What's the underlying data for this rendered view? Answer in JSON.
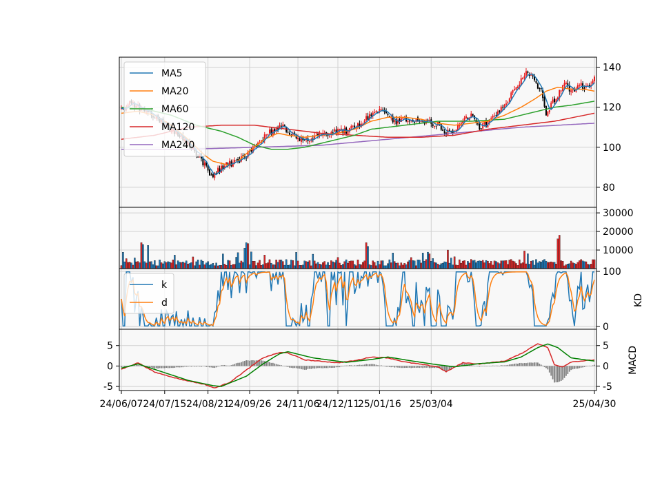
{
  "chart_data": {
    "type": "candlestick",
    "x_tick_labels": [
      "24/06/07",
      "24/07/15",
      "24/08/21",
      "24/09/26",
      "24/11/06",
      "24/12/11",
      "25/01/16",
      "25/03/04",
      "25/04/30"
    ],
    "price": {
      "ylim": [
        70,
        145
      ],
      "y_ticks": [
        80,
        100,
        120,
        140
      ],
      "grid": true,
      "legend_location": "upper-left",
      "legend": [
        "MA5",
        "MA20",
        "MA60",
        "MA120",
        "MA240"
      ],
      "colors": {
        "MA5": "#1f77b4",
        "MA20": "#ff7f0e",
        "MA60": "#2ca02c",
        "MA120": "#d62728",
        "MA240": "#9467bd",
        "up": "#e41a1c",
        "down": "#000000"
      },
      "anchors": {
        "close": [
          [
            0,
            118
          ],
          [
            5,
            122
          ],
          [
            10,
            120
          ],
          [
            18,
            117
          ],
          [
            26,
            111
          ],
          [
            34,
            107
          ],
          [
            42,
            100
          ],
          [
            48,
            94
          ],
          [
            52,
            88
          ],
          [
            55,
            86
          ],
          [
            60,
            90
          ],
          [
            66,
            92
          ],
          [
            72,
            94
          ],
          [
            78,
            98
          ],
          [
            84,
            104
          ],
          [
            90,
            108
          ],
          [
            95,
            111
          ],
          [
            100,
            108
          ],
          [
            104,
            106
          ],
          [
            108,
            104
          ],
          [
            113,
            104
          ],
          [
            118,
            106
          ],
          [
            124,
            107
          ],
          [
            130,
            108
          ],
          [
            135,
            108
          ],
          [
            140,
            110
          ],
          [
            145,
            112
          ],
          [
            150,
            117
          ],
          [
            155,
            119
          ],
          [
            160,
            115
          ],
          [
            165,
            113
          ],
          [
            170,
            114
          ],
          [
            175,
            114
          ],
          [
            180,
            113
          ],
          [
            185,
            112
          ],
          [
            190,
            112
          ],
          [
            195,
            107
          ],
          [
            200,
            108
          ],
          [
            205,
            114
          ],
          [
            210,
            116
          ],
          [
            215,
            110
          ],
          [
            220,
            112
          ],
          [
            225,
            117
          ],
          [
            230,
            120
          ],
          [
            235,
            128
          ],
          [
            240,
            133
          ],
          [
            243,
            139
          ],
          [
            247,
            134
          ],
          [
            252,
            128
          ],
          [
            255,
            116
          ],
          [
            258,
            121
          ],
          [
            262,
            126
          ],
          [
            266,
            132
          ],
          [
            270,
            128
          ],
          [
            275,
            131
          ],
          [
            280,
            130
          ],
          [
            284,
            134
          ]
        ],
        "ma20": [
          [
            0,
            117
          ],
          [
            10,
            118
          ],
          [
            20,
            116
          ],
          [
            30,
            111
          ],
          [
            40,
            104
          ],
          [
            50,
            96
          ],
          [
            55,
            93
          ],
          [
            60,
            92
          ],
          [
            65,
            91
          ],
          [
            70,
            93
          ],
          [
            78,
            99
          ],
          [
            86,
            104
          ],
          [
            94,
            107
          ],
          [
            100,
            106
          ],
          [
            110,
            105
          ],
          [
            120,
            106
          ],
          [
            130,
            107
          ],
          [
            140,
            109
          ],
          [
            150,
            113
          ],
          [
            160,
            115
          ],
          [
            170,
            115
          ],
          [
            180,
            114
          ],
          [
            190,
            112
          ],
          [
            200,
            111
          ],
          [
            210,
            112
          ],
          [
            220,
            113
          ],
          [
            230,
            116
          ],
          [
            240,
            120
          ],
          [
            248,
            124
          ],
          [
            255,
            128
          ],
          [
            262,
            130
          ],
          [
            270,
            129
          ],
          [
            278,
            129
          ],
          [
            284,
            128
          ]
        ],
        "ma60": [
          [
            0,
            120
          ],
          [
            15,
            119
          ],
          [
            30,
            116
          ],
          [
            45,
            111
          ],
          [
            60,
            108
          ],
          [
            70,
            105
          ],
          [
            80,
            101
          ],
          [
            90,
            99
          ],
          [
            100,
            99
          ],
          [
            110,
            100
          ],
          [
            120,
            102
          ],
          [
            130,
            104
          ],
          [
            140,
            106
          ],
          [
            150,
            109
          ],
          [
            170,
            111
          ],
          [
            190,
            113
          ],
          [
            210,
            113
          ],
          [
            230,
            114
          ],
          [
            245,
            117
          ],
          [
            260,
            120
          ],
          [
            270,
            121
          ],
          [
            284,
            123
          ]
        ],
        "ma120": [
          [
            0,
            104
          ],
          [
            20,
            106
          ],
          [
            40,
            110
          ],
          [
            60,
            111
          ],
          [
            80,
            111
          ],
          [
            100,
            109
          ],
          [
            120,
            107
          ],
          [
            140,
            106
          ],
          [
            160,
            105
          ],
          [
            180,
            105
          ],
          [
            200,
            106
          ],
          [
            220,
            109
          ],
          [
            240,
            111
          ],
          [
            260,
            113
          ],
          [
            284,
            117
          ]
        ],
        "ma240": [
          [
            0,
            99
          ],
          [
            40,
            99
          ],
          [
            80,
            100
          ],
          [
            120,
            101
          ],
          [
            160,
            104
          ],
          [
            200,
            107
          ],
          [
            240,
            110
          ],
          [
            284,
            112
          ]
        ]
      }
    },
    "volume": {
      "ylim": [
        0,
        33000
      ],
      "y_ticks": [
        10000,
        20000,
        30000
      ],
      "colors": {
        "up": "#d62728",
        "down": "#1f77b4"
      },
      "spikes": [
        [
          12,
          14000
        ],
        [
          13,
          13000
        ],
        [
          16,
          12500
        ],
        [
          74,
          11000
        ],
        [
          75,
          14000
        ],
        [
          76,
          13500
        ],
        [
          78,
          9000
        ],
        [
          147,
          14000
        ],
        [
          148,
          12000
        ],
        [
          196,
          10000
        ],
        [
          242,
          9500
        ],
        [
          244,
          8000
        ],
        [
          262,
          16000
        ],
        [
          263,
          18000
        ]
      ]
    },
    "kd": {
      "ylim": [
        0,
        100
      ],
      "y_ticks": [
        0,
        100
      ],
      "ylabel": "KD",
      "legend": [
        "k",
        "d"
      ],
      "legend_location": "upper-left",
      "colors": {
        "k": "#1f77b4",
        "d": "#ff7f0e"
      }
    },
    "macd": {
      "ylim": [
        -6,
        9
      ],
      "y_ticks": [
        -5,
        0,
        5
      ],
      "ylabel": "MACD",
      "colors": {
        "dif": "#d62728",
        "signal": "#008000",
        "hist": "#808080"
      },
      "dif_anchors": [
        [
          0,
          -0.8
        ],
        [
          10,
          0.8
        ],
        [
          20,
          -1.5
        ],
        [
          35,
          -3.2
        ],
        [
          50,
          -4.5
        ],
        [
          56,
          -5.4
        ],
        [
          65,
          -4
        ],
        [
          75,
          -1
        ],
        [
          85,
          2
        ],
        [
          95,
          3.3
        ],
        [
          100,
          3.2
        ],
        [
          110,
          1.5
        ],
        [
          130,
          0.8
        ],
        [
          140,
          1.3
        ],
        [
          150,
          2.2
        ],
        [
          160,
          2
        ],
        [
          170,
          1
        ],
        [
          190,
          -0.2
        ],
        [
          195,
          -1.4
        ],
        [
          205,
          0.8
        ],
        [
          215,
          0.5
        ],
        [
          230,
          1.2
        ],
        [
          240,
          3
        ],
        [
          250,
          5.5
        ],
        [
          256,
          4.5
        ],
        [
          260,
          0.3
        ],
        [
          265,
          -0.2
        ],
        [
          270,
          1
        ],
        [
          284,
          1.5
        ]
      ],
      "sig_anchors": [
        [
          0,
          -0.5
        ],
        [
          10,
          0.5
        ],
        [
          25,
          -1.5
        ],
        [
          40,
          -3.5
        ],
        [
          55,
          -4.8
        ],
        [
          60,
          -5
        ],
        [
          75,
          -2.5
        ],
        [
          85,
          0.5
        ],
        [
          95,
          3
        ],
        [
          100,
          3.5
        ],
        [
          115,
          2
        ],
        [
          135,
          0.9
        ],
        [
          150,
          1.6
        ],
        [
          160,
          2.2
        ],
        [
          175,
          1.2
        ],
        [
          190,
          0.3
        ],
        [
          200,
          -0.2
        ],
        [
          215,
          0.6
        ],
        [
          230,
          1
        ],
        [
          240,
          2.2
        ],
        [
          250,
          4.5
        ],
        [
          256,
          5.4
        ],
        [
          262,
          4.5
        ],
        [
          270,
          2
        ],
        [
          284,
          1.2
        ]
      ]
    }
  }
}
